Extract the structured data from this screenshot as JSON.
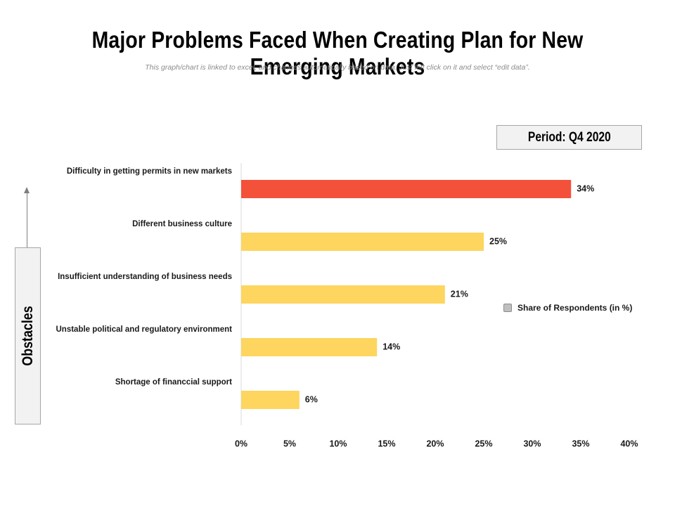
{
  "header": {
    "title": "Major Problems Faced When Creating Plan for New Emerging Markets",
    "subtitle": "This graph/chart is linked to excel, and changes automatically based on data. Just left click on it and select “edit data”."
  },
  "period": {
    "label": "Period:  Q4 2020"
  },
  "axis_box": {
    "label": "Obstacles"
  },
  "legend": {
    "label": "Share of Respondents (in %)"
  },
  "colors": {
    "highlight": "#f4513b",
    "bar": "#fdd55f",
    "axis": "#d9d9d9",
    "legend_swatch": "#bfbfbf"
  },
  "chart_data": {
    "type": "bar",
    "orientation": "horizontal",
    "title": "Major Problems Faced When Creating Plan for New Emerging Markets",
    "xlabel": "",
    "ylabel": "Obstacles",
    "xlim": [
      0,
      40
    ],
    "x_ticks": [
      "0%",
      "5%",
      "10%",
      "15%",
      "20%",
      "25%",
      "30%",
      "35%",
      "40%"
    ],
    "categories": [
      "Difficulty in getting permits in new markets",
      "Different business culture",
      "Insufficient understanding of business needs",
      "Unstable political and regulatory environment",
      "Shortage of financcial support"
    ],
    "series": [
      {
        "name": "Share of Respondents (in %)",
        "values": [
          34,
          25,
          21,
          14,
          6
        ],
        "labels": [
          "34%",
          "25%",
          "21%",
          "14%",
          "6%"
        ]
      }
    ],
    "highlight_index": 0,
    "legend_position": "right"
  }
}
